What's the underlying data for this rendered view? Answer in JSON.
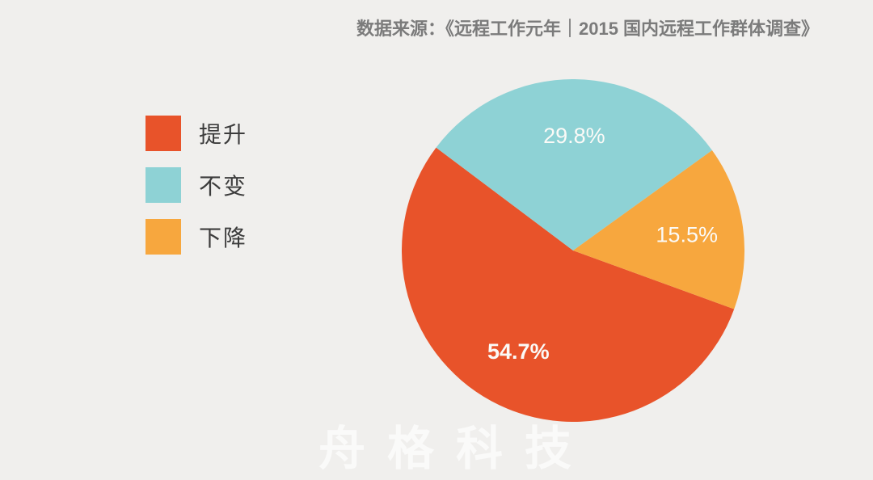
{
  "header": {
    "source_note": "数据来源：《远程工作元年｜2015 国内远程工作群体调查》"
  },
  "chart_data": {
    "type": "pie",
    "slices": [
      {
        "name": "increase",
        "label": "提升",
        "value": 54.7,
        "display": "54.7%",
        "color": "#E8532A",
        "label_weight": 700
      },
      {
        "name": "unchanged",
        "label": "不变",
        "value": 29.8,
        "display": "29.8%",
        "color": "#8ED2D5",
        "label_weight": 300
      },
      {
        "name": "decrease",
        "label": "下降",
        "value": 15.5,
        "display": "15.5%",
        "color": "#F7A73E",
        "label_weight": 300
      }
    ],
    "start_angle_deg": 110,
    "label_color": "#FBFAF7",
    "label_font_size": 27,
    "label_radius_ratio": 0.67,
    "legend_position": "left",
    "source_note": "数据来源：《远程工作元年｜2015 国内远程工作群体调查》"
  },
  "watermark": {
    "text": "舟格科技"
  },
  "colors": {
    "background": "#F0EFED",
    "source_text": "#7B7B7B",
    "legend_text": "#3C3C3C"
  }
}
